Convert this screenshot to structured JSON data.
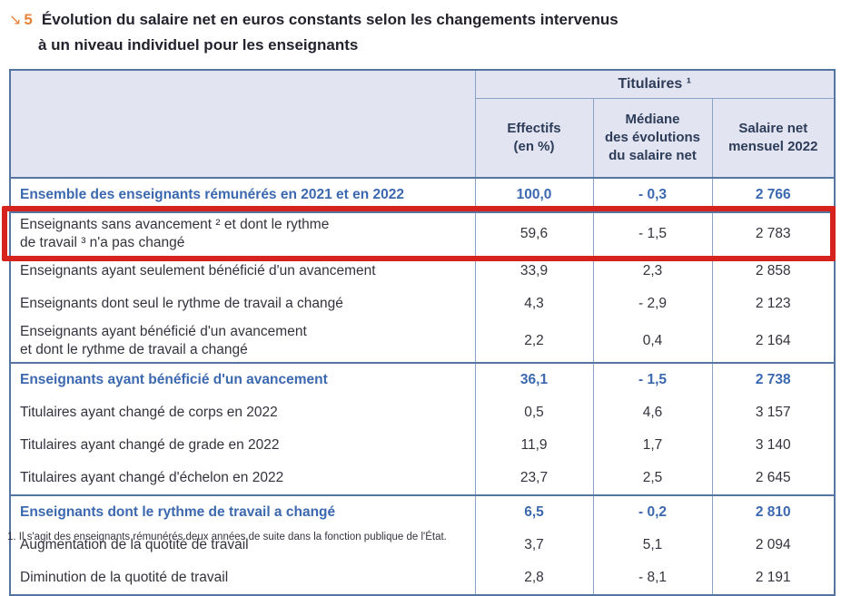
{
  "figure": {
    "arrow": "↘",
    "number": "5",
    "title_line1": "Évolution du salaire net en euros constants selon les changements intervenus",
    "title_line2": "à un niveau individuel pour les enseignants"
  },
  "table": {
    "group_header": "Titulaires ¹",
    "columns": [
      "Effectifs\n(en %)",
      "Médiane\ndes évolutions\ndu salaire net",
      "Salaire net\nmensuel 2022"
    ],
    "rows": [
      {
        "label": "Ensemble des enseignants rémunérés en 2021 et en 2022",
        "effectifs": "100,0",
        "mediane": "- 0,3",
        "salaire": "2 766",
        "style": "section",
        "sep": false,
        "highlighted": false
      },
      {
        "label": "Enseignants sans avancement ² et dont le rythme\nde travail ³ n'a pas changé",
        "effectifs": "59,6",
        "mediane": "- 1,5",
        "salaire": "2 783",
        "style": "normal",
        "sep": true,
        "highlighted": true
      },
      {
        "label": "Enseignants ayant seulement bénéficié d'un avancement",
        "effectifs": "33,9",
        "mediane": "2,3",
        "salaire": "2 858",
        "style": "normal",
        "sep": false,
        "highlighted": false
      },
      {
        "label": "Enseignants dont seul le rythme de travail a changé",
        "effectifs": "4,3",
        "mediane": "- 2,9",
        "salaire": "2 123",
        "style": "normal",
        "sep": false,
        "highlighted": false
      },
      {
        "label": "Enseignants ayant bénéficié d'un avancement\net dont le rythme de travail a changé",
        "effectifs": "2,2",
        "mediane": "0,4",
        "salaire": "2 164",
        "style": "normal",
        "sep": false,
        "highlighted": false
      },
      {
        "label": "Enseignants ayant bénéficié d'un avancement",
        "effectifs": "36,1",
        "mediane": "- 1,5",
        "salaire": "2 738",
        "style": "section",
        "sep": true,
        "highlighted": false
      },
      {
        "label": "Titulaires ayant changé de corps en 2022",
        "effectifs": "0,5",
        "mediane": "4,6",
        "salaire": "3 157",
        "style": "normal",
        "sep": false,
        "highlighted": false
      },
      {
        "label": "Titulaires ayant changé de grade en 2022",
        "effectifs": "11,9",
        "mediane": "1,7",
        "salaire": "3 140",
        "style": "normal",
        "sep": false,
        "highlighted": false
      },
      {
        "label": "Titulaires ayant changé d'échelon en 2022",
        "effectifs": "23,7",
        "mediane": "2,5",
        "salaire": "2 645",
        "style": "normal",
        "sep": false,
        "highlighted": false
      },
      {
        "label": "Enseignants dont le rythme de travail a changé",
        "effectifs": "6,5",
        "mediane": "- 0,2",
        "salaire": "2 810",
        "style": "section",
        "sep": true,
        "highlighted": false
      },
      {
        "label": "Augmentation de la quotité de travail",
        "effectifs": "3,7",
        "mediane": "5,1",
        "salaire": "2 094",
        "style": "normal",
        "sep": false,
        "highlighted": false
      },
      {
        "label": "Diminution de la quotité de travail",
        "effectifs": "2,8",
        "mediane": "- 8,1",
        "salaire": "2 191",
        "style": "normal",
        "sep": false,
        "highlighted": false
      }
    ]
  },
  "annotation": {
    "color": "#d7231e"
  },
  "footnote": "1. Il s'agit des enseignants rémunérés deux années de suite dans la fonction publique de l'État."
}
